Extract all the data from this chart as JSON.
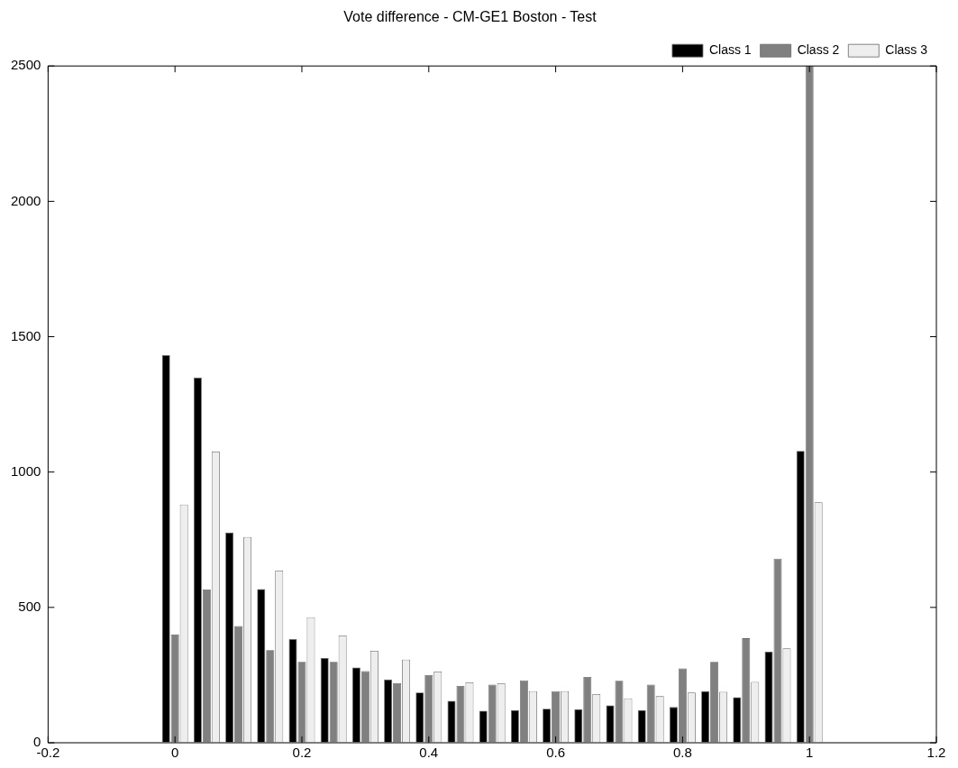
{
  "chart_data": {
    "type": "bar",
    "title": "Vote difference - CM-GE1 Boston - Test",
    "x": [
      0,
      0.05,
      0.1,
      0.15,
      0.2,
      0.25,
      0.3,
      0.35,
      0.4,
      0.45,
      0.5,
      0.55,
      0.6,
      0.65,
      0.7,
      0.75,
      0.8,
      0.85,
      0.9,
      0.95,
      1
    ],
    "series": [
      {
        "name": "Class 1",
        "color": "#000000",
        "values": [
          1432,
          1349,
          777,
          568,
          383,
          313,
          278,
          234,
          186,
          155,
          118,
          121,
          126,
          124,
          138,
          121,
          132,
          191,
          168,
          336,
          1078
        ]
      },
      {
        "name": "Class 2",
        "color": "#808080",
        "values": [
          400,
          566,
          431,
          342,
          299,
          299,
          265,
          220,
          250,
          210,
          215,
          231,
          191,
          243,
          229,
          215,
          275,
          299,
          386,
          680,
          2500
        ]
      },
      {
        "name": "Class 3",
        "color": "#eeeeee",
        "values": [
          880,
          1076,
          760,
          636,
          464,
          396,
          340,
          307,
          263,
          223,
          220,
          191,
          191,
          180,
          164,
          172,
          186,
          188,
          225,
          349,
          888
        ]
      }
    ],
    "xlim": [
      -0.2,
      1.2
    ],
    "xticks": [
      {
        "value": -0.2,
        "label": "-0.2"
      },
      0,
      0.2,
      0.4,
      0.6,
      0.8,
      1,
      1.2
    ],
    "ylim": [
      0,
      2500
    ],
    "yticks": [
      0,
      500,
      1000,
      1500,
      2000,
      2500
    ],
    "grid": false,
    "legend": "top right"
  }
}
